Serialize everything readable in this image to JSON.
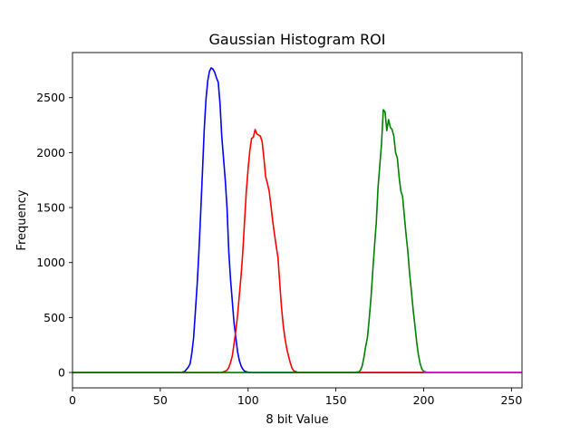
{
  "chart_data": {
    "type": "line",
    "title": "Gaussian Histogram ROI",
    "xlabel": "8 bit Value",
    "ylabel": "Frequency",
    "xlim": [
      0,
      256
    ],
    "ylim": [
      -140,
      2910
    ],
    "xticks": [
      0,
      50,
      100,
      150,
      200,
      250
    ],
    "xtick_labels": [
      "0",
      "50",
      "100",
      "150",
      "200",
      "250"
    ],
    "yticks": [
      0,
      500,
      1000,
      1500,
      2000,
      2500
    ],
    "ytick_labels": [
      "0",
      "500",
      "1000",
      "1500",
      "2000",
      "2500"
    ],
    "grid": false,
    "legend": "none",
    "series": [
      {
        "color": "#0000ff",
        "points": [
          [
            0,
            0
          ],
          [
            62,
            0
          ],
          [
            64,
            10
          ],
          [
            66,
            50
          ],
          [
            67,
            80
          ],
          [
            68,
            180
          ],
          [
            69,
            320
          ],
          [
            70,
            560
          ],
          [
            71,
            800
          ],
          [
            72,
            1100
          ],
          [
            73,
            1450
          ],
          [
            74,
            1820
          ],
          [
            75,
            2200
          ],
          [
            76,
            2480
          ],
          [
            77,
            2650
          ],
          [
            78,
            2740
          ],
          [
            79,
            2770
          ],
          [
            80,
            2760
          ],
          [
            81,
            2730
          ],
          [
            82,
            2680
          ],
          [
            83,
            2640
          ],
          [
            84,
            2450
          ],
          [
            85,
            2150
          ],
          [
            86,
            1950
          ],
          [
            87,
            1750
          ],
          [
            88,
            1500
          ],
          [
            89,
            1100
          ],
          [
            90,
            850
          ],
          [
            91,
            650
          ],
          [
            92,
            450
          ],
          [
            93,
            320
          ],
          [
            94,
            190
          ],
          [
            95,
            110
          ],
          [
            96,
            60
          ],
          [
            97,
            30
          ],
          [
            98,
            12
          ],
          [
            100,
            2
          ],
          [
            102,
            0
          ],
          [
            256,
            0
          ]
        ]
      },
      {
        "color": "#ff0000",
        "points": [
          [
            0,
            0
          ],
          [
            84,
            0
          ],
          [
            86,
            5
          ],
          [
            88,
            20
          ],
          [
            89,
            45
          ],
          [
            90,
            90
          ],
          [
            91,
            150
          ],
          [
            92,
            260
          ],
          [
            93,
            380
          ],
          [
            94,
            520
          ],
          [
            95,
            700
          ],
          [
            96,
            880
          ],
          [
            97,
            1100
          ],
          [
            98,
            1380
          ],
          [
            99,
            1650
          ],
          [
            100,
            1850
          ],
          [
            101,
            2020
          ],
          [
            102,
            2130
          ],
          [
            103,
            2140
          ],
          [
            104,
            2210
          ],
          [
            105,
            2170
          ],
          [
            106,
            2160
          ],
          [
            107,
            2150
          ],
          [
            108,
            2100
          ],
          [
            109,
            1950
          ],
          [
            110,
            1780
          ],
          [
            111,
            1720
          ],
          [
            112,
            1650
          ],
          [
            113,
            1520
          ],
          [
            114,
            1380
          ],
          [
            115,
            1260
          ],
          [
            116,
            1150
          ],
          [
            117,
            1050
          ],
          [
            118,
            820
          ],
          [
            119,
            600
          ],
          [
            120,
            430
          ],
          [
            121,
            310
          ],
          [
            122,
            220
          ],
          [
            123,
            150
          ],
          [
            124,
            90
          ],
          [
            125,
            40
          ],
          [
            126,
            15
          ],
          [
            128,
            3
          ],
          [
            130,
            0
          ],
          [
            256,
            0
          ]
        ]
      },
      {
        "color": "#008000",
        "points": [
          [
            0,
            0
          ],
          [
            160,
            0
          ],
          [
            163,
            5
          ],
          [
            164,
            20
          ],
          [
            165,
            60
          ],
          [
            166,
            140
          ],
          [
            167,
            240
          ],
          [
            168,
            320
          ],
          [
            169,
            490
          ],
          [
            170,
            680
          ],
          [
            171,
            920
          ],
          [
            172,
            1150
          ],
          [
            173,
            1360
          ],
          [
            174,
            1680
          ],
          [
            175,
            1880
          ],
          [
            176,
            2080
          ],
          [
            177,
            2390
          ],
          [
            178,
            2370
          ],
          [
            179,
            2200
          ],
          [
            180,
            2300
          ],
          [
            181,
            2230
          ],
          [
            182,
            2210
          ],
          [
            183,
            2150
          ],
          [
            184,
            2000
          ],
          [
            185,
            1950
          ],
          [
            186,
            1780
          ],
          [
            187,
            1650
          ],
          [
            188,
            1600
          ],
          [
            189,
            1420
          ],
          [
            190,
            1250
          ],
          [
            191,
            1100
          ],
          [
            192,
            900
          ],
          [
            193,
            740
          ],
          [
            194,
            570
          ],
          [
            195,
            430
          ],
          [
            196,
            280
          ],
          [
            197,
            160
          ],
          [
            198,
            80
          ],
          [
            199,
            30
          ],
          [
            200,
            10
          ],
          [
            202,
            2
          ],
          [
            204,
            0
          ],
          [
            256,
            0
          ]
        ]
      },
      {
        "color": "#ff00ff",
        "points": [
          [
            200,
            0
          ],
          [
            256,
            0
          ]
        ]
      }
    ]
  }
}
